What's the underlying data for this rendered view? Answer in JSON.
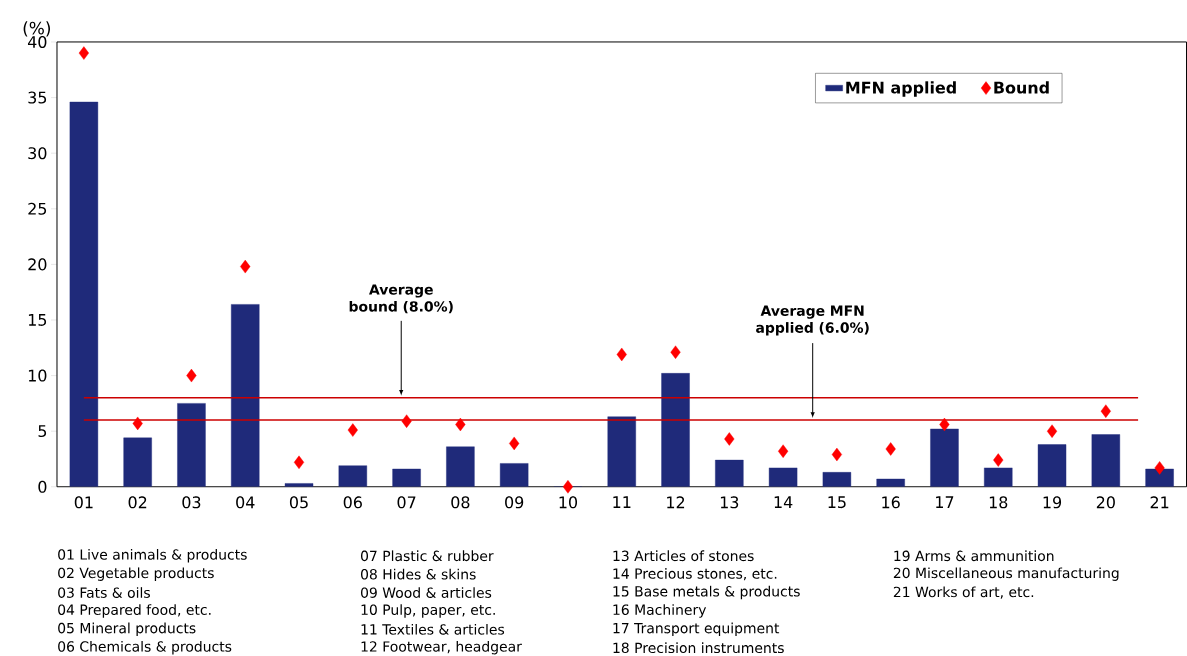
{
  "chart_data": {
    "type": "bar",
    "ylabel": "(%)",
    "categories": [
      "01",
      "02",
      "03",
      "04",
      "05",
      "06",
      "07",
      "08",
      "09",
      "10",
      "11",
      "12",
      "13",
      "14",
      "15",
      "16",
      "17",
      "18",
      "19",
      "20",
      "21"
    ],
    "series": [
      {
        "name": "MFN applied",
        "color": "#1f2a7a",
        "values": [
          34.6,
          4.4,
          7.5,
          16.4,
          0.3,
          1.9,
          1.6,
          3.6,
          2.1,
          0,
          6.3,
          10.2,
          2.4,
          1.7,
          1.3,
          0.7,
          5.2,
          1.7,
          3.8,
          4.7,
          1.6
        ]
      },
      {
        "name": "Bound",
        "type": "scatter",
        "color": "#ff0000",
        "marker": "diamond",
        "values": [
          39.0,
          5.7,
          10.0,
          19.8,
          2.2,
          5.1,
          5.9,
          5.6,
          3.9,
          0,
          11.9,
          12.1,
          4.3,
          3.2,
          2.9,
          3.4,
          5.6,
          2.4,
          5.0,
          6.8,
          1.7
        ]
      }
    ],
    "ylim": [
      0,
      40
    ],
    "yticks": [
      0,
      5,
      10,
      15,
      20,
      25,
      30,
      35,
      40
    ],
    "legend": "top right",
    "ref_lines": [
      {
        "axis": "y",
        "value": 8,
        "label": "Average bound (8.0%)",
        "color": "#cc0000"
      },
      {
        "axis": "y",
        "value": 6,
        "label": "Average MFN applied (6.0%)",
        "color": "#cc0000"
      }
    ],
    "annotations": [
      "01 Live animals & products",
      "02 Vegetable products",
      "03 Fats & oils",
      "04 Prepared food, etc.",
      "05 Mineral products",
      "06 Chemicals & products",
      "07 Plastic & rubber",
      "08 Hides & skins",
      "09 Wood & articles",
      "10 Pulp, paper, etc.",
      "11 Textiles & articles",
      "12 Footwear, headgear",
      "13 Articles of stones",
      "14 Precious stones, etc.",
      "15 Base metals & products",
      "16 Machinery",
      "17 Transport equipment",
      "18 Precision instruments",
      "19 Arms & ammunition",
      "20 Miscellaneous manufacturing",
      "21 Works of art, etc."
    ]
  }
}
